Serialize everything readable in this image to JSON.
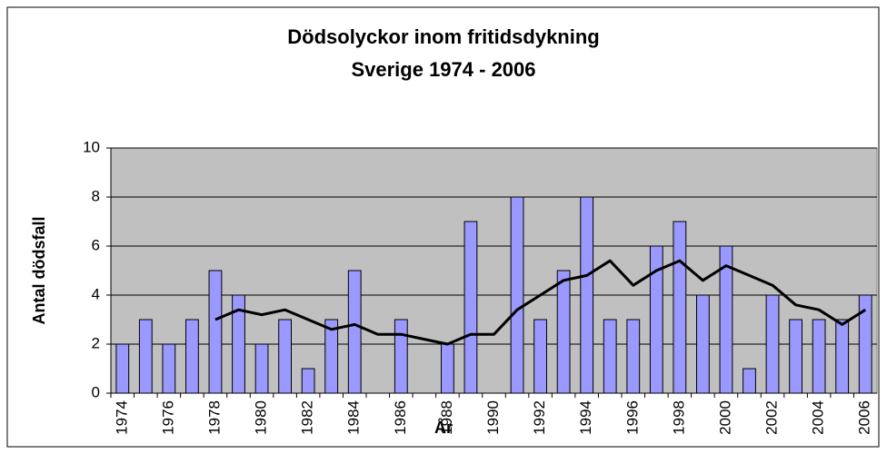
{
  "chart_data": {
    "type": "bar",
    "title": [
      "Dödsolyckor inom fritidsdykning",
      "Sverige 1974 - 2006"
    ],
    "categories": [
      "1974",
      null,
      "1976",
      null,
      "1978",
      null,
      "1980",
      null,
      "1982",
      null,
      "1984",
      null,
      "1986",
      null,
      "1988",
      null,
      "1990",
      null,
      "1992",
      null,
      "1994",
      null,
      "1996",
      null,
      "1998",
      null,
      "2000",
      null,
      "2002",
      null,
      "2004",
      null,
      "2006"
    ],
    "series": [
      {
        "type": "bar",
        "color": "#9999ff",
        "values": [
          2,
          3,
          2,
          3,
          5,
          4,
          2,
          3,
          1,
          3,
          5,
          0,
          3,
          0,
          2,
          7,
          0,
          8,
          3,
          5,
          8,
          3,
          3,
          6,
          7,
          4,
          6,
          1,
          4,
          3,
          3,
          3,
          4
        ]
      },
      {
        "type": "line",
        "color": "#000000",
        "values": [
          null,
          null,
          null,
          null,
          3.0,
          3.4,
          3.2,
          3.4,
          3.0,
          2.6,
          2.8,
          2.4,
          2.4,
          2.2,
          2.0,
          2.4,
          2.4,
          3.4,
          4.0,
          4.6,
          4.8,
          5.4,
          4.4,
          5.0,
          5.4,
          4.6,
          5.2,
          4.8,
          4.4,
          3.6,
          3.4,
          2.8,
          3.4
        ]
      }
    ],
    "xlabel": "År",
    "ylabel": "Antal dödsfall",
    "ylim": [
      0,
      10
    ],
    "yticks": [
      0,
      2,
      4,
      6,
      8,
      10
    ],
    "grid": true,
    "plot_background": "#c0c0c0"
  }
}
